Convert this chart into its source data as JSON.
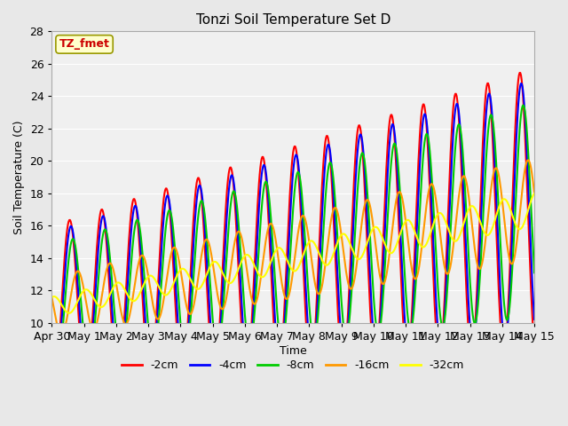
{
  "title": "Tonzi Soil Temperature Set D",
  "xlabel": "Time",
  "ylabel": "Soil Temperature (C)",
  "ylim": [
    10,
    28
  ],
  "annotation_text": "TZ_fmet",
  "annotation_bg": "#ffffcc",
  "annotation_border": "#cccc00",
  "annotation_color": "#cc0000",
  "series": [
    {
      "label": "-2cm",
      "color": "#ff0000"
    },
    {
      "label": "-4cm",
      "color": "#0000ff"
    },
    {
      "label": "-8cm",
      "color": "#00cc00"
    },
    {
      "label": "-16cm",
      "color": "#ff9900"
    },
    {
      "label": "-32cm",
      "color": "#ffff00"
    }
  ],
  "xtick_labels": [
    "Apr 30",
    "May 1",
    "May 2",
    "May 3",
    "May 4",
    "May 5",
    "May 6",
    "May 7",
    "May 8",
    "May 9",
    "May 10",
    "May 11",
    "May 12",
    "May 13",
    "May 14",
    "May 15"
  ],
  "bg_color": "#e8e8e8",
  "plot_bg_color": "#f0f0f0",
  "grid_color": "#ffffff",
  "line_width": 1.5
}
